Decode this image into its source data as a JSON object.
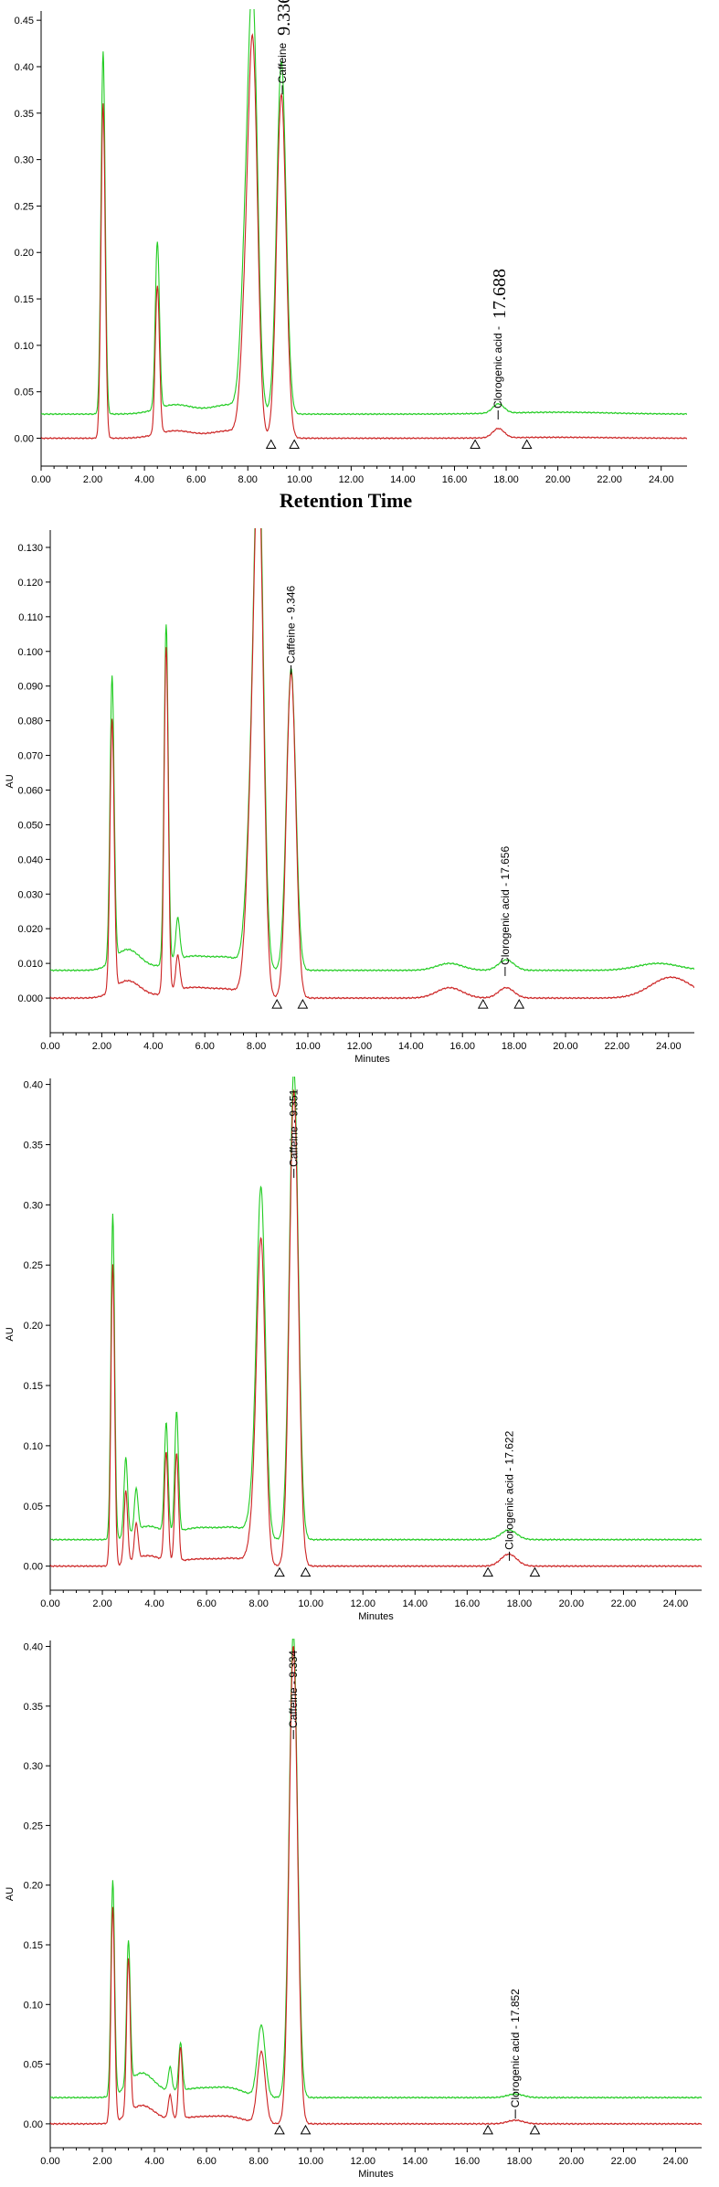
{
  "chart_data": [
    {
      "type": "line",
      "title": "",
      "xlabel": "",
      "ylabel": "",
      "caption": "Retention Time",
      "xlim": [
        0,
        25
      ],
      "ylim": [
        -0.03,
        0.46
      ],
      "x_ticks": [
        "0.00",
        "2.00",
        "4.00",
        "6.00",
        "8.00",
        "10.00",
        "12.00",
        "14.00",
        "16.00",
        "18.00",
        "20.00",
        "22.00",
        "24.00"
      ],
      "y_ticks": [
        "0.00",
        "0.05",
        "0.10",
        "0.15",
        "0.20",
        "0.25",
        "0.30",
        "0.35",
        "0.40",
        "0.45"
      ],
      "grid": false,
      "series": [
        {
          "color": "#22cc22",
          "baseline_offset": 0.026,
          "peaks": [
            [
              2.4,
              0.39,
              0.08
            ],
            [
              4.5,
              0.18,
              0.08
            ],
            [
              7.9,
              0.14,
              0.18
            ],
            [
              8.2,
              0.42,
              0.18
            ],
            [
              9.3,
              0.38,
              0.18
            ],
            [
              17.7,
              0.01,
              0.22
            ]
          ],
          "bumps": [
            [
              5.2,
              0.01,
              0.7
            ],
            [
              7.3,
              0.01,
              0.7
            ],
            [
              20.0,
              0.002,
              2.0
            ]
          ]
        },
        {
          "color": "#cc2222",
          "baseline_offset": 0.0,
          "peaks": [
            [
              2.4,
              0.36,
              0.08
            ],
            [
              4.5,
              0.16,
              0.08
            ],
            [
              7.9,
              0.11,
              0.18
            ],
            [
              8.2,
              0.4,
              0.18
            ],
            [
              9.3,
              0.37,
              0.18
            ],
            [
              17.7,
              0.01,
              0.22
            ]
          ],
          "bumps": [
            [
              5.2,
              0.008,
              0.7
            ],
            [
              7.3,
              0.008,
              0.7
            ],
            [
              20.0,
              0.001,
              2.0
            ]
          ]
        }
      ],
      "annotations": [
        {
          "x": 9.336,
          "y_label": 0.38,
          "text": "Caffeine",
          "value_text": "9.336"
        },
        {
          "x": 17.688,
          "y_label": 0.03,
          "text": "Clorogenic acid",
          "value_text": "17.688"
        }
      ],
      "markers": [
        8.9,
        9.8,
        16.8,
        18.8
      ]
    },
    {
      "type": "line",
      "title": "",
      "xlabel": "Minutes",
      "ylabel": "AU",
      "xlim": [
        0,
        25
      ],
      "ylim": [
        -0.01,
        0.135
      ],
      "x_ticks": [
        "0.00",
        "2.00",
        "4.00",
        "6.00",
        "8.00",
        "10.00",
        "12.00",
        "14.00",
        "16.00",
        "18.00",
        "20.00",
        "22.00",
        "24.00"
      ],
      "y_ticks": [
        "0.000",
        "0.010",
        "0.020",
        "0.030",
        "0.040",
        "0.050",
        "0.060",
        "0.070",
        "0.080",
        "0.090",
        "0.100",
        "0.110",
        "0.120",
        "0.130"
      ],
      "grid": false,
      "series": [
        {
          "color": "#22cc22",
          "baseline_offset": 0.008,
          "peaks": [
            [
              2.4,
              0.082,
              0.08
            ],
            [
              4.5,
              0.098,
              0.08
            ],
            [
              4.95,
              0.012,
              0.08
            ],
            [
              7.8,
              0.04,
              0.2
            ],
            [
              8.1,
              0.14,
              0.18
            ],
            [
              9.35,
              0.087,
              0.18
            ],
            [
              17.7,
              0.003,
              0.3
            ],
            [
              15.5,
              0.002,
              0.5
            ],
            [
              23.6,
              0.002,
              0.8
            ]
          ],
          "bumps": [
            [
              3.0,
              0.006,
              0.5
            ],
            [
              5.5,
              0.004,
              0.8
            ],
            [
              7.0,
              0.003,
              0.6
            ]
          ]
        },
        {
          "color": "#cc2222",
          "baseline_offset": 0.0,
          "peaks": [
            [
              2.4,
              0.078,
              0.08
            ],
            [
              4.5,
              0.1,
              0.08
            ],
            [
              4.95,
              0.01,
              0.08
            ],
            [
              7.8,
              0.045,
              0.2
            ],
            [
              8.1,
              0.14,
              0.18
            ],
            [
              9.35,
              0.094,
              0.18
            ],
            [
              17.7,
              0.003,
              0.3
            ],
            [
              15.5,
              0.003,
              0.5
            ],
            [
              24.1,
              0.006,
              0.8
            ]
          ],
          "bumps": [
            [
              3.0,
              0.005,
              0.5
            ],
            [
              5.5,
              0.003,
              0.8
            ],
            [
              7.0,
              0.002,
              0.6
            ]
          ]
        }
      ],
      "annotations": [
        {
          "x": 9.346,
          "y_label": 0.096,
          "text": "Caffeine - 9.346"
        },
        {
          "x": 17.656,
          "y_label": 0.009,
          "text": "Clorogenic acid - 17.656"
        }
      ],
      "markers": [
        8.8,
        9.8,
        16.8,
        18.2
      ]
    },
    {
      "type": "line",
      "title": "",
      "xlabel": "Minutes",
      "ylabel": "AU",
      "xlim": [
        0,
        25
      ],
      "ylim": [
        -0.02,
        0.405
      ],
      "x_ticks": [
        "0.00",
        "2.00",
        "4.00",
        "6.00",
        "8.00",
        "10.00",
        "12.00",
        "14.00",
        "16.00",
        "18.00",
        "20.00",
        "22.00",
        "24.00"
      ],
      "y_ticks": [
        "0.00",
        "0.05",
        "0.10",
        "0.15",
        "0.20",
        "0.25",
        "0.30",
        "0.35",
        "0.40"
      ],
      "grid": false,
      "series": [
        {
          "color": "#22cc22",
          "baseline_offset": 0.022,
          "peaks": [
            [
              2.4,
              0.27,
              0.07
            ],
            [
              2.9,
              0.065,
              0.07
            ],
            [
              3.3,
              0.035,
              0.07
            ],
            [
              4.45,
              0.09,
              0.07
            ],
            [
              4.85,
              0.1,
              0.07
            ],
            [
              7.9,
              0.05,
              0.2
            ],
            [
              8.1,
              0.26,
              0.16
            ],
            [
              9.35,
              0.39,
              0.17
            ],
            [
              17.6,
              0.008,
              0.3
            ]
          ],
          "bumps": [
            [
              3.7,
              0.01,
              0.5
            ],
            [
              5.8,
              0.01,
              1.0
            ],
            [
              7.2,
              0.006,
              0.5
            ]
          ]
        },
        {
          "color": "#cc2222",
          "baseline_offset": 0.0,
          "peaks": [
            [
              2.4,
              0.25,
              0.07
            ],
            [
              2.9,
              0.06,
              0.07
            ],
            [
              3.3,
              0.03,
              0.07
            ],
            [
              4.45,
              0.09,
              0.07
            ],
            [
              4.85,
              0.09,
              0.07
            ],
            [
              7.9,
              0.05,
              0.2
            ],
            [
              8.1,
              0.24,
              0.16
            ],
            [
              9.35,
              0.395,
              0.17
            ],
            [
              17.6,
              0.01,
              0.3
            ]
          ],
          "bumps": [
            [
              3.7,
              0.008,
              0.5
            ],
            [
              5.8,
              0.006,
              1.0
            ],
            [
              7.2,
              0.004,
              0.5
            ]
          ]
        }
      ],
      "annotations": [
        {
          "x": 9.351,
          "y_label": 0.33,
          "text": "Caffeine - 9.351"
        },
        {
          "x": 17.622,
          "y_label": 0.012,
          "text": "Clorogenic acid - 17.622"
        }
      ],
      "markers": [
        8.8,
        9.8,
        16.8,
        18.6
      ]
    },
    {
      "type": "line",
      "title": "",
      "xlabel": "Minutes",
      "ylabel": "AU",
      "xlim": [
        0,
        25
      ],
      "ylim": [
        -0.02,
        0.405
      ],
      "x_ticks": [
        "0.00",
        "2.00",
        "4.00",
        "6.00",
        "8.00",
        "10.00",
        "12.00",
        "14.00",
        "16.00",
        "18.00",
        "20.00",
        "22.00",
        "24.00"
      ],
      "y_ticks": [
        "0.00",
        "0.05",
        "0.10",
        "0.15",
        "0.20",
        "0.25",
        "0.30",
        "0.35",
        "0.40"
      ],
      "grid": false,
      "series": [
        {
          "color": "#22cc22",
          "baseline_offset": 0.022,
          "peaks": [
            [
              2.4,
              0.18,
              0.07
            ],
            [
              3.0,
              0.12,
              0.07
            ],
            [
              4.6,
              0.02,
              0.07
            ],
            [
              5.0,
              0.04,
              0.07
            ],
            [
              8.1,
              0.06,
              0.15
            ],
            [
              9.33,
              0.39,
              0.16
            ],
            [
              17.85,
              0.003,
              0.3
            ]
          ],
          "bumps": [
            [
              3.5,
              0.02,
              0.5
            ],
            [
              5.8,
              0.008,
              1.0
            ],
            [
              7.0,
              0.004,
              0.5
            ]
          ]
        },
        {
          "color": "#cc2222",
          "baseline_offset": 0.0,
          "peaks": [
            [
              2.4,
              0.18,
              0.07
            ],
            [
              3.0,
              0.13,
              0.07
            ],
            [
              4.6,
              0.02,
              0.07
            ],
            [
              5.0,
              0.06,
              0.07
            ],
            [
              8.1,
              0.06,
              0.15
            ],
            [
              9.33,
              0.4,
              0.16
            ],
            [
              17.85,
              0.003,
              0.3
            ]
          ],
          "bumps": [
            [
              3.5,
              0.015,
              0.5
            ],
            [
              5.8,
              0.006,
              1.0
            ],
            [
              7.0,
              0.003,
              0.5
            ]
          ]
        }
      ],
      "annotations": [
        {
          "x": 9.334,
          "y_label": 0.33,
          "text": "Caffeine - 9.334"
        },
        {
          "x": 17.852,
          "y_label": 0.012,
          "text": "Clorogenic acid - 17.852"
        }
      ],
      "markers": [
        8.8,
        9.8,
        16.8,
        18.6
      ]
    }
  ]
}
